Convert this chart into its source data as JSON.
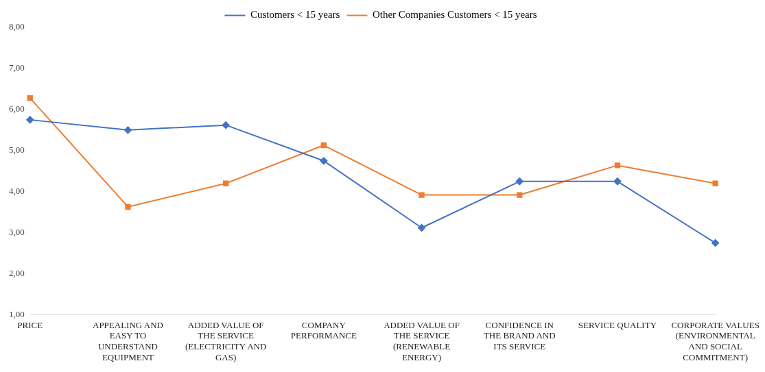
{
  "chart_data": {
    "type": "line",
    "categories": [
      "PRICE",
      "APPEALING AND EASY TO UNDERSTAND EQUIPMENT",
      "ADDED VALUE OF THE SERVICE (ELECTRICITY AND GAS)",
      "COMPANY PERFORMANCE",
      "ADDED VALUE OF THE SERVICE (RENEWABLE ENERGY)",
      "CONFIDENCE IN THE BRAND AND ITS SERVICE",
      "SERVICE QUALITY",
      "CORPORATE VALUES (ENVIRONMENTAL AND SOCIAL COMMITMENT)"
    ],
    "series": [
      {
        "name": "Customers < 15 years",
        "color": "#4472c4",
        "marker": "diamond",
        "values": [
          5.75,
          5.5,
          5.62,
          4.75,
          3.12,
          4.25,
          4.25,
          2.75
        ]
      },
      {
        "name": "Other Companies Customers < 15 years",
        "color": "#ed7d31",
        "marker": "square",
        "values": [
          6.28,
          3.63,
          4.2,
          5.13,
          3.92,
          3.92,
          4.64,
          4.2
        ]
      }
    ],
    "ylim": [
      1,
      8
    ],
    "yticks": [
      {
        "value": 1,
        "label": "1,00"
      },
      {
        "value": 2,
        "label": "2,00"
      },
      {
        "value": 3,
        "label": "3,00"
      },
      {
        "value": 4,
        "label": "4,00"
      },
      {
        "value": 5,
        "label": "5,00"
      },
      {
        "value": 6,
        "label": "6,00"
      },
      {
        "value": 7,
        "label": "7,00"
      },
      {
        "value": 8,
        "label": "8,00"
      }
    ],
    "grid": false,
    "legend": "top"
  }
}
